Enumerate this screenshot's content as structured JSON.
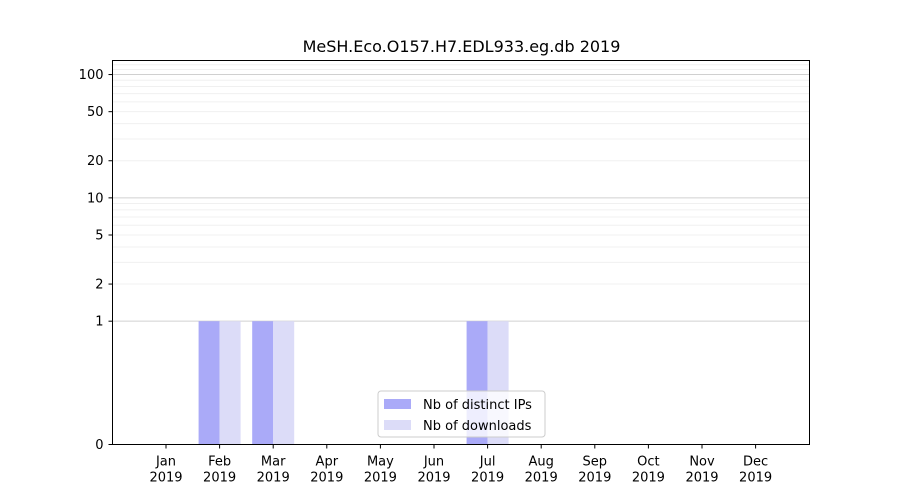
{
  "chart_data": {
    "type": "bar",
    "title": "MeSH.Eco.O157.H7.EDL933.eg.db 2019",
    "xlabel": "",
    "ylabel": "",
    "categories": [
      [
        "Jan",
        "2019"
      ],
      [
        "Feb",
        "2019"
      ],
      [
        "Mar",
        "2019"
      ],
      [
        "Apr",
        "2019"
      ],
      [
        "May",
        "2019"
      ],
      [
        "Jun",
        "2019"
      ],
      [
        "Jul",
        "2019"
      ],
      [
        "Aug",
        "2019"
      ],
      [
        "Sep",
        "2019"
      ],
      [
        "Oct",
        "2019"
      ],
      [
        "Nov",
        "2019"
      ],
      [
        "Dec",
        "2019"
      ]
    ],
    "series": [
      {
        "name": "Nb of distinct IPs",
        "color": "#aaaaf8",
        "values": [
          0,
          1,
          1,
          0,
          0,
          0,
          1,
          0,
          0,
          0,
          0,
          0
        ]
      },
      {
        "name": "Nb of downloads",
        "color": "#dcdcf8",
        "values": [
          0,
          1,
          1,
          0,
          0,
          0,
          1,
          0,
          0,
          0,
          0,
          0
        ]
      }
    ],
    "y_scale": "symlog",
    "y_ticks": [
      0,
      1,
      2,
      5,
      10,
      20,
      50,
      100
    ],
    "ylim": [
      0,
      130
    ],
    "grid": true,
    "legend_position": "lower-center"
  }
}
